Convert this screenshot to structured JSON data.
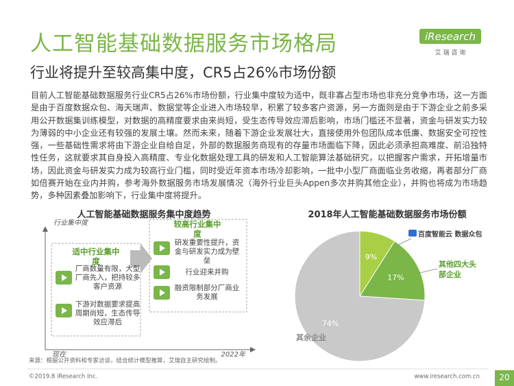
{
  "header": {
    "title": "人工智能基础数据服务市场格局",
    "subtitle": "行业将提升至较高集中度，CR5占26%市场份额",
    "logo": "iResearch",
    "logo_sub": "艾 瑞 咨 询"
  },
  "intro": "目前人工智能基础数据服务行业CR5占26%市场份额，行业集中度较为适中，既非寡占型市场也非充分竞争市场，这一方面是由于百度数据众包、海天瑞声、数据堂等企业进入市场较早，积累了较多客户资源，另一方面则是由于下游企业之前多采用公开数据集训练模型，对数据的高精度要求由来尚短，受生态传导效应滞后影响，市场门槛还不显著，资金与研发实力较为薄弱的中小企业还有较强的发展土壤。然而未来，随着下游企业发展壮大，直接使用外包团队成本低廉、数据安全可控性强，一些基础性需求将由下游企业自给自足，外部的数据服务商现有的存量市场面临下降，因此必须承担高难度、前沿独特性任务，这就要求其自身投入高精度、专业化数据处理工具的研发和人工智能算法基础研究，以把握客户需求，开拓增量市场，因此资金与研发实力成为较高行业门槛，同时受近年资本市场冷却影响，一批中小型厂商面临业务收缩，再者部分厂商如倍赛开始在业内并购，参考海外数据服务市场发展情况（海外行业巨头Appen多次并购其他企业），并购也将成为市场趋势，多种因素叠加影响下，行业集中度将提升。",
  "trend": {
    "title": "人工智能基础数据服务集中度趋势",
    "y_label": "行业集中度",
    "x_start": "现在",
    "x_end": "2022年",
    "stages": [
      {
        "title": "适中行业集中度",
        "items": [
          "厂商数量有限，大型厂商先入，把持较多客户资源",
          "下游对数据要求提高周期尚短，生态传导效应滞后"
        ]
      },
      {
        "title": "较高行业集中度",
        "items": [
          "研发重要性提升，资金与研发实力成为壁垒",
          "行业迎来并购",
          "融资限制部分厂商业务发展"
        ]
      }
    ]
  },
  "chart_data": {
    "type": "pie",
    "title": "2018年人工智能基础数据服务市场份额",
    "categories": [
      "百度智能云 数据众包",
      "其他四大头部企业",
      "其余企业"
    ],
    "values": [
      9,
      17,
      74
    ],
    "value_labels": [
      "9%",
      "17%",
      "74%"
    ],
    "colors": [
      "#a8cf45",
      "#7ab648",
      "#c9c9c9"
    ]
  },
  "source": "来源：根据公开资料和专家访谈，结合统计模型推算，艾瑞自主研究绘制。",
  "footer": {
    "copyright": "©2019.8 iResearch Inc.",
    "url": "www.iresearch.com.cn",
    "page": "20"
  }
}
